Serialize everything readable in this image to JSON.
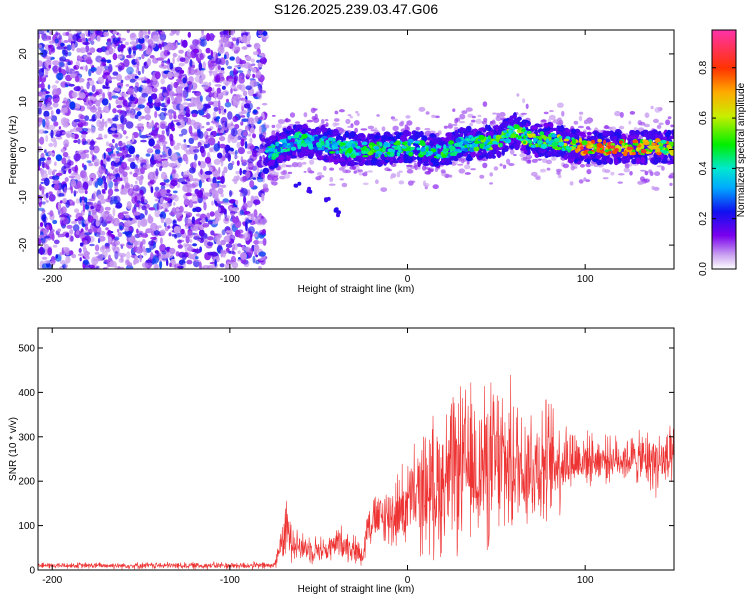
{
  "title": "S126.2025.239.03.47.G06",
  "chart_data": [
    {
      "type": "heatmap",
      "xlabel": "Height of straight line (km)",
      "ylabel": "Frequency (Hz)",
      "xlim": [
        -208,
        150
      ],
      "ylim": [
        -25,
        25
      ],
      "x_ticks": [
        -200,
        -100,
        0,
        100
      ],
      "y_ticks": [
        -20,
        -10,
        0,
        10,
        20
      ],
      "colorbar": {
        "label": "Normalized spectral amplitude",
        "range": [
          0,
          0.95
        ],
        "ticks": [
          0.0,
          0.2,
          0.4,
          0.6,
          0.8
        ]
      },
      "noise_region_x": [
        -208,
        -80
      ],
      "ridge": [
        {
          "x": -80,
          "y": -1.5,
          "amp": 0.5
        },
        {
          "x": -70,
          "y": 1.0,
          "amp": 0.45
        },
        {
          "x": -60,
          "y": 2.0,
          "amp": 0.5
        },
        {
          "x": -50,
          "y": 1.5,
          "amp": 0.45
        },
        {
          "x": -40,
          "y": 0.5,
          "amp": 0.55
        },
        {
          "x": -30,
          "y": 0.0,
          "amp": 0.5
        },
        {
          "x": -20,
          "y": 0.0,
          "amp": 0.6
        },
        {
          "x": -10,
          "y": 0.0,
          "amp": 0.5
        },
        {
          "x": 0,
          "y": 0.5,
          "amp": 0.55
        },
        {
          "x": 10,
          "y": 0.0,
          "amp": 0.5
        },
        {
          "x": 20,
          "y": -0.5,
          "amp": 0.55
        },
        {
          "x": 30,
          "y": 1.0,
          "amp": 0.5
        },
        {
          "x": 40,
          "y": 1.5,
          "amp": 0.55
        },
        {
          "x": 50,
          "y": 1.5,
          "amp": 0.6
        },
        {
          "x": 60,
          "y": 4.0,
          "amp": 0.6
        },
        {
          "x": 70,
          "y": 2.0,
          "amp": 0.65
        },
        {
          "x": 80,
          "y": 2.0,
          "amp": 0.6
        },
        {
          "x": 90,
          "y": 1.0,
          "amp": 0.7
        },
        {
          "x": 100,
          "y": 0.5,
          "amp": 0.9
        },
        {
          "x": 110,
          "y": 0.5,
          "amp": 0.9
        },
        {
          "x": 120,
          "y": 0.5,
          "amp": 0.9
        },
        {
          "x": 130,
          "y": 0.5,
          "amp": 0.85
        },
        {
          "x": 140,
          "y": 0.5,
          "amp": 0.8
        },
        {
          "x": 150,
          "y": 0.5,
          "amp": 0.75
        }
      ],
      "streak": [
        {
          "x": -62,
          "y": -7.5
        },
        {
          "x": -55,
          "y": -8.5
        },
        {
          "x": -45,
          "y": -10.5
        },
        {
          "x": -40,
          "y": -12.5
        },
        {
          "x": -38,
          "y": -13.5
        }
      ]
    },
    {
      "type": "line",
      "xlabel": "Height of straight line (km)",
      "ylabel": "SNR (10 * v/v)",
      "xlim": [
        -208,
        150
      ],
      "ylim": [
        0,
        545
      ],
      "x_ticks": [
        -200,
        -100,
        0,
        100
      ],
      "y_ticks": [
        0,
        100,
        200,
        300,
        400,
        500
      ],
      "series_color": "#ee3333",
      "envelope": [
        {
          "x": -208,
          "base": 10,
          "amp": 8
        },
        {
          "x": -75,
          "base": 10,
          "amp": 10
        },
        {
          "x": -72,
          "base": 50,
          "amp": 40
        },
        {
          "x": -68,
          "base": 90,
          "amp": 80
        },
        {
          "x": -60,
          "base": 50,
          "amp": 40
        },
        {
          "x": -45,
          "base": 45,
          "amp": 35
        },
        {
          "x": -38,
          "base": 65,
          "amp": 45
        },
        {
          "x": -25,
          "base": 35,
          "amp": 35
        },
        {
          "x": -22,
          "base": 110,
          "amp": 60
        },
        {
          "x": -10,
          "base": 120,
          "amp": 90
        },
        {
          "x": 0,
          "base": 150,
          "amp": 120
        },
        {
          "x": 10,
          "base": 180,
          "amp": 170
        },
        {
          "x": 20,
          "base": 200,
          "amp": 200
        },
        {
          "x": 30,
          "base": 230,
          "amp": 220
        },
        {
          "x": 40,
          "base": 230,
          "amp": 210
        },
        {
          "x": 50,
          "base": 240,
          "amp": 230
        },
        {
          "x": 60,
          "base": 240,
          "amp": 200
        },
        {
          "x": 70,
          "base": 240,
          "amp": 180
        },
        {
          "x": 80,
          "base": 240,
          "amp": 170
        },
        {
          "x": 90,
          "base": 250,
          "amp": 110
        },
        {
          "x": 100,
          "base": 250,
          "amp": 70
        },
        {
          "x": 110,
          "base": 250,
          "amp": 60
        },
        {
          "x": 120,
          "base": 250,
          "amp": 60
        },
        {
          "x": 130,
          "base": 250,
          "amp": 70
        },
        {
          "x": 140,
          "base": 245,
          "amp": 90
        },
        {
          "x": 150,
          "base": 240,
          "amp": 90
        }
      ]
    }
  ]
}
